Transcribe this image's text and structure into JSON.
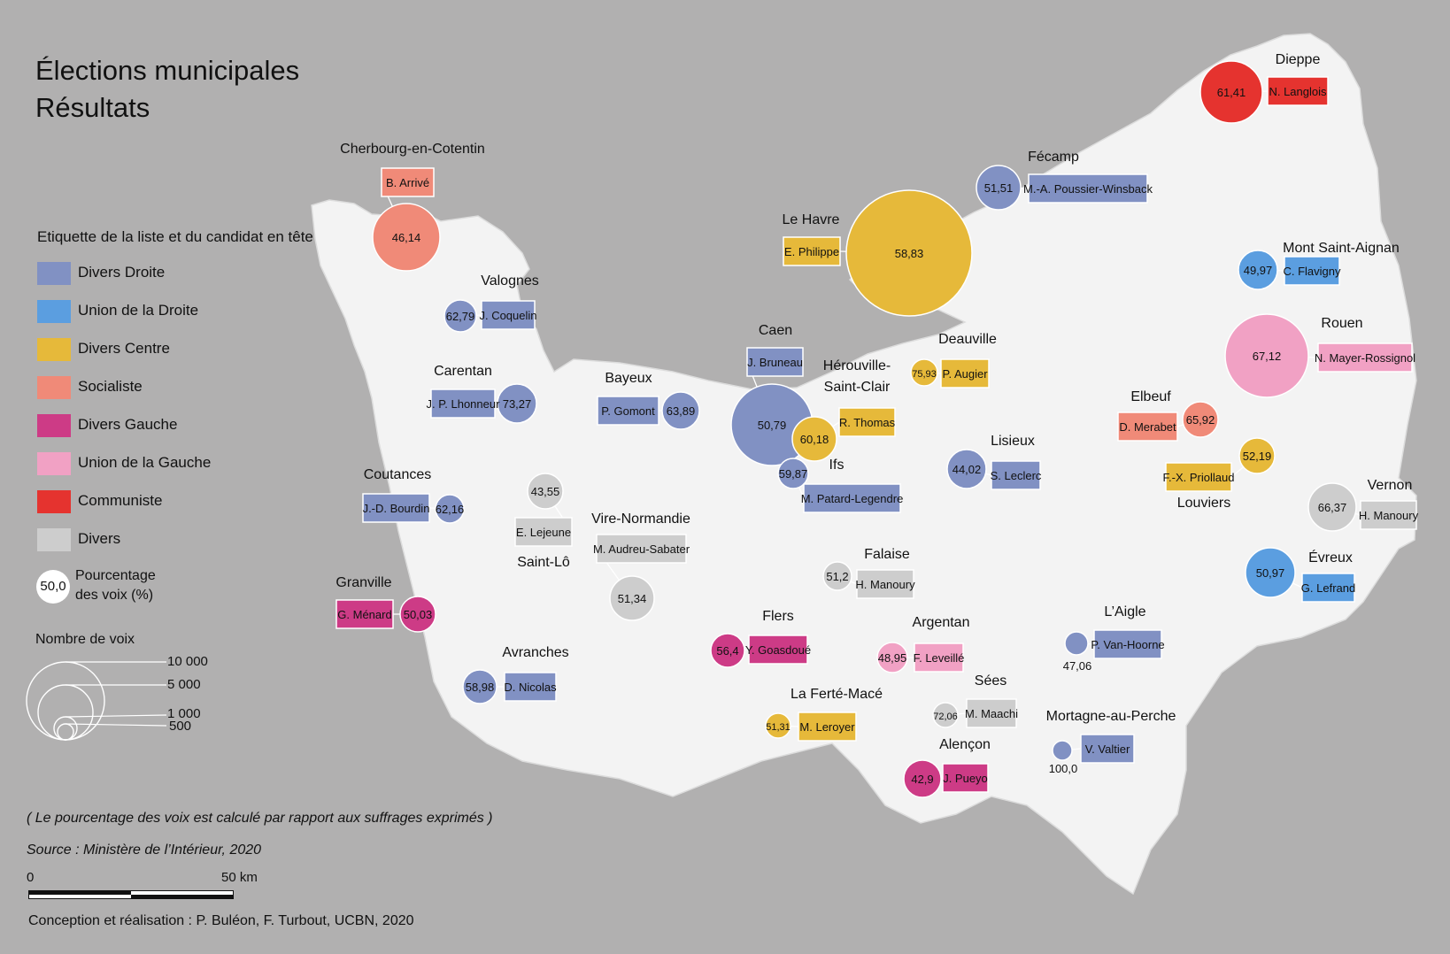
{
  "title": {
    "line1": "Élections municipales",
    "line2": "Résultats"
  },
  "legend": {
    "title": "Etiquette de la liste et du candidat en tête",
    "items": [
      {
        "label": "Divers Droite",
        "color": "#8191c3"
      },
      {
        "label": "Union de la Droite",
        "color": "#5b9ee0"
      },
      {
        "label": "Divers Centre",
        "color": "#e6b93a"
      },
      {
        "label": "Socialiste",
        "color": "#f08a78"
      },
      {
        "label": "Divers Gauche",
        "color": "#cd3b86"
      },
      {
        "label": "Union de la Gauche",
        "color": "#f1a1c4"
      },
      {
        "label": "Communiste",
        "color": "#e5332f"
      },
      {
        "label": "Divers",
        "color": "#cdcdcd"
      }
    ],
    "pct_symbol": "50,0",
    "pct_line1": "Pourcentage",
    "pct_line2": "des voix (%)",
    "votes_title": "Nombre de voix",
    "votes_ticks": [
      "10 000",
      "5 000",
      "1 000",
      "500"
    ]
  },
  "notes": {
    "calc": "( Le pourcentage des voix est calculé par rapport aux suffrages exprimés )",
    "source": "Source : Ministère de l’Intérieur, 2020"
  },
  "scale": {
    "start": "0",
    "end": "50 km"
  },
  "credit": "Conception et réalisation : P. Buléon, F. Turbout, UCBN, 2020",
  "cities": [
    {
      "name": "Dieppe",
      "pct": "61,41",
      "candidate": "N. Langlois",
      "party": "Communiste"
    },
    {
      "name": "Fécamp",
      "pct": "51,51",
      "candidate": "M.-A. Poussier-Winsback",
      "party": "Divers Droite"
    },
    {
      "name": "Le Havre",
      "pct": "58,83",
      "candidate": "E. Philippe",
      "party": "Divers Centre"
    },
    {
      "name": "Mont Saint-Aignan",
      "pct": "49,97",
      "candidate": "C. Flavigny",
      "party": "Union de la Droite"
    },
    {
      "name": "Rouen",
      "pct": "67,12",
      "candidate": "N. Mayer-Rossignol",
      "party": "Union de la Gauche"
    },
    {
      "name": "Cherbourg-en-Cotentin",
      "pct": "46,14",
      "candidate": "B. Arrivé",
      "party": "Socialiste"
    },
    {
      "name": "Valognes",
      "pct": "62,79",
      "candidate": "J. Coquelin",
      "party": "Divers Droite"
    },
    {
      "name": "Carentan",
      "pct": "73,27",
      "candidate": "J. P. Lhonneur",
      "party": "Divers Droite"
    },
    {
      "name": "Bayeux",
      "pct": "63,89",
      "candidate": "P. Gomont",
      "party": "Divers Droite"
    },
    {
      "name": "Caen",
      "pct": "50,79",
      "candidate": "J. Bruneau",
      "party": "Divers Droite"
    },
    {
      "name": "Deauville",
      "pct": "75,93",
      "candidate": "P. Augier",
      "party": "Divers Centre"
    },
    {
      "name": "Hérouville-Saint-Clair",
      "pct": "60,18",
      "candidate": "R. Thomas",
      "party": "Divers Centre"
    },
    {
      "name": "Ifs",
      "pct": "59,87",
      "candidate": "M. Patard-Legendre",
      "party": "Divers Droite"
    },
    {
      "name": "Elbeuf",
      "pct": "65,92",
      "candidate": "D. Merabet",
      "party": "Socialiste"
    },
    {
      "name": "Lisieux",
      "pct": "44,02",
      "candidate": "S. Leclerc",
      "party": "Divers Droite"
    },
    {
      "name": "Louviers",
      "pct": "52,19",
      "candidate": "F.-X. Priollaud",
      "party": "Divers Centre"
    },
    {
      "name": "Vernon",
      "pct": "66,37",
      "candidate": "H. Manoury",
      "party": "Divers"
    },
    {
      "name": "Coutances",
      "pct": "62,16",
      "candidate": "J.-D. Bourdin",
      "party": "Divers Droite"
    },
    {
      "name": "Saint-Lô",
      "pct": "43,55",
      "candidate": "E. Lejeune",
      "party": "Divers"
    },
    {
      "name": "Vire-Normandie",
      "pct": "51,34",
      "candidate": "M. Audreu-Sabater",
      "party": "Divers"
    },
    {
      "name": "Falaise",
      "pct": "51,2",
      "candidate": "H. Manoury",
      "party": "Divers"
    },
    {
      "name": "Évreux",
      "pct": "50,97",
      "candidate": "G. Lefrand",
      "party": "Union de la Droite"
    },
    {
      "name": "Granville",
      "pct": "50,03",
      "candidate": "G. Ménard",
      "party": "Divers Gauche"
    },
    {
      "name": "Flers",
      "pct": "56,4",
      "candidate": "Y. Goasdoué",
      "party": "Divers Gauche"
    },
    {
      "name": "Argentan",
      "pct": "48,95",
      "candidate": "F. Leveillé",
      "party": "Union de la Gauche"
    },
    {
      "name": "L’Aigle",
      "pct": "47,06",
      "candidate": "P. Van-Hoorne",
      "party": "Divers Droite"
    },
    {
      "name": "Avranches",
      "pct": "58,98",
      "candidate": "D. Nicolas",
      "party": "Divers Droite"
    },
    {
      "name": "Sées",
      "pct": "72,06",
      "candidate": "M. Maachi",
      "party": "Divers"
    },
    {
      "name": "La Ferté-Macé",
      "pct": "51,31",
      "candidate": "M. Leroyer",
      "party": "Divers Centre"
    },
    {
      "name": "Mortagne-au-Perche",
      "pct": "100,0",
      "candidate": "V. Valtier",
      "party": "Divers Droite"
    },
    {
      "name": "Alençon",
      "pct": "42,9",
      "candidate": "J. Pueyo",
      "party": "Divers Gauche"
    }
  ]
}
